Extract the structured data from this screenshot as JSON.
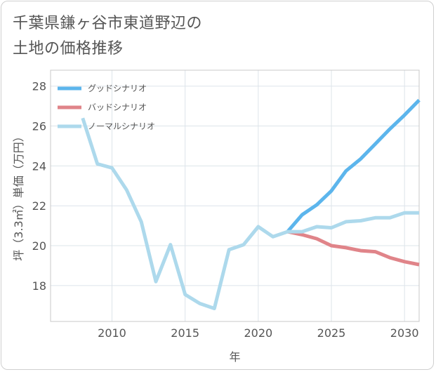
{
  "title_line1": "千葉県鎌ヶ谷市東道野辺の",
  "title_line2": "土地の価格推移",
  "chart_data": {
    "type": "line",
    "xlabel": "年",
    "ylabel": "坪（3.3㎡）単価（万円）",
    "xlim": [
      2005.8,
      2031
    ],
    "ylim": [
      16.2,
      28.8
    ],
    "xticks": [
      2010,
      2015,
      2020,
      2025,
      2030
    ],
    "yticks": [
      18,
      20,
      22,
      24,
      26,
      28
    ],
    "grid": true,
    "legend_position": "top-left",
    "series": [
      {
        "name": "グッドシナリオ",
        "color": "#5cb5ec",
        "x": [
          2022,
          2023,
          2024,
          2025,
          2026,
          2027,
          2028,
          2029,
          2030,
          2031
        ],
        "values": [
          20.7,
          21.55,
          22.05,
          22.75,
          23.75,
          24.35,
          25.1,
          25.85,
          26.55,
          27.3
        ]
      },
      {
        "name": "バッドシナリオ",
        "color": "#e08489",
        "x": [
          2022,
          2023,
          2024,
          2025,
          2026,
          2027,
          2028,
          2029,
          2030,
          2031
        ],
        "values": [
          20.7,
          20.55,
          20.35,
          20.0,
          19.9,
          19.75,
          19.7,
          19.4,
          19.2,
          19.05
        ]
      },
      {
        "name": "ノーマルシナリオ",
        "color": "#add9ec",
        "x": [
          2008,
          2009,
          2010,
          2011,
          2012,
          2013,
          2014,
          2015,
          2016,
          2017,
          2018,
          2019,
          2020,
          2021,
          2022,
          2023,
          2024,
          2025,
          2026,
          2027,
          2028,
          2029,
          2030,
          2031
        ],
        "values": [
          26.4,
          24.1,
          23.9,
          22.8,
          21.2,
          18.2,
          20.05,
          17.55,
          17.1,
          16.85,
          19.8,
          20.05,
          20.95,
          20.45,
          20.7,
          20.7,
          20.95,
          20.9,
          21.2,
          21.25,
          21.4,
          21.4,
          21.65,
          21.65
        ]
      }
    ]
  }
}
